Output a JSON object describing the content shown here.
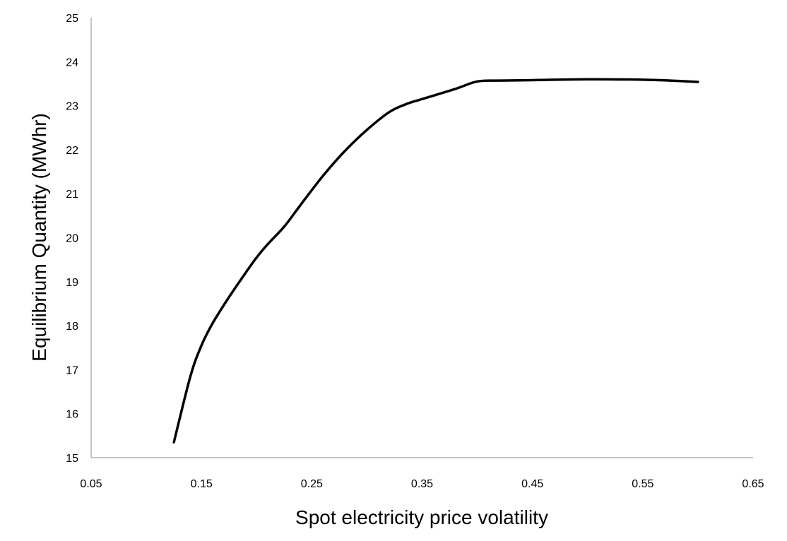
{
  "chart_data": {
    "type": "line",
    "title": "",
    "xlabel": "Spot electricity price volatility",
    "ylabel": "Equilibrium Quantity (MWhr)",
    "xlim": [
      0.05,
      0.65
    ],
    "ylim": [
      15,
      25
    ],
    "x_ticks": [
      "0.05",
      "0.15",
      "0.25",
      "0.35",
      "0.45",
      "0.55",
      "0.65"
    ],
    "y_ticks": [
      "15",
      "16",
      "17",
      "18",
      "19",
      "20",
      "21",
      "22",
      "23",
      "24",
      "25"
    ],
    "grid": false,
    "legend": "none",
    "series": [
      {
        "color": "#000000",
        "x": [
          0.125,
          0.14,
          0.15,
          0.16,
          0.175,
          0.19,
          0.2,
          0.21,
          0.225,
          0.24,
          0.26,
          0.28,
          0.3,
          0.32,
          0.335,
          0.35,
          0.38,
          0.4,
          0.42,
          0.45,
          0.5,
          0.55,
          0.575,
          0.6
        ],
        "y": [
          15.35,
          16.85,
          17.55,
          18.05,
          18.65,
          19.2,
          19.55,
          19.85,
          20.25,
          20.75,
          21.4,
          21.97,
          22.45,
          22.85,
          23.03,
          23.15,
          23.38,
          23.55,
          23.57,
          23.58,
          23.6,
          23.59,
          23.57,
          23.54
        ]
      }
    ]
  }
}
